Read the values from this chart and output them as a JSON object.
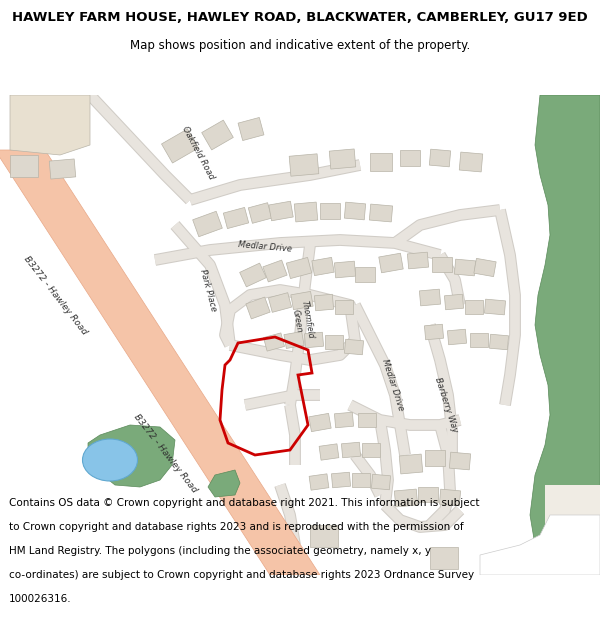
{
  "title_line1": "HAWLEY FARM HOUSE, HAWLEY ROAD, BLACKWATER, CAMBERLEY, GU17 9ED",
  "title_line2": "Map shows position and indicative extent of the property.",
  "footer_lines": [
    "Contains OS data © Crown copyright and database right 2021. This information is subject",
    "to Crown copyright and database rights 2023 and is reproduced with the permission of",
    "HM Land Registry. The polygons (including the associated geometry, namely x, y",
    "co-ordinates) are subject to Crown copyright and database rights 2023 Ordnance Survey",
    "100026316."
  ],
  "map_bg_color": "#f0ece4",
  "road_main_color": "#f5c4a8",
  "road_edge_color": "#e8a888",
  "road_minor_color": "#e8e4de",
  "road_minor_edge": "#d0ccc6",
  "building_fill": "#ddd8ce",
  "building_edge": "#b8b4a8",
  "green_color": "#7aaa7a",
  "green_edge": "#5a8a5a",
  "blue_color": "#88c4e8",
  "blue_edge": "#60a8d0",
  "red_color": "#cc0000",
  "text_color": "#303030",
  "large_building_fill": "#e8e0d0"
}
